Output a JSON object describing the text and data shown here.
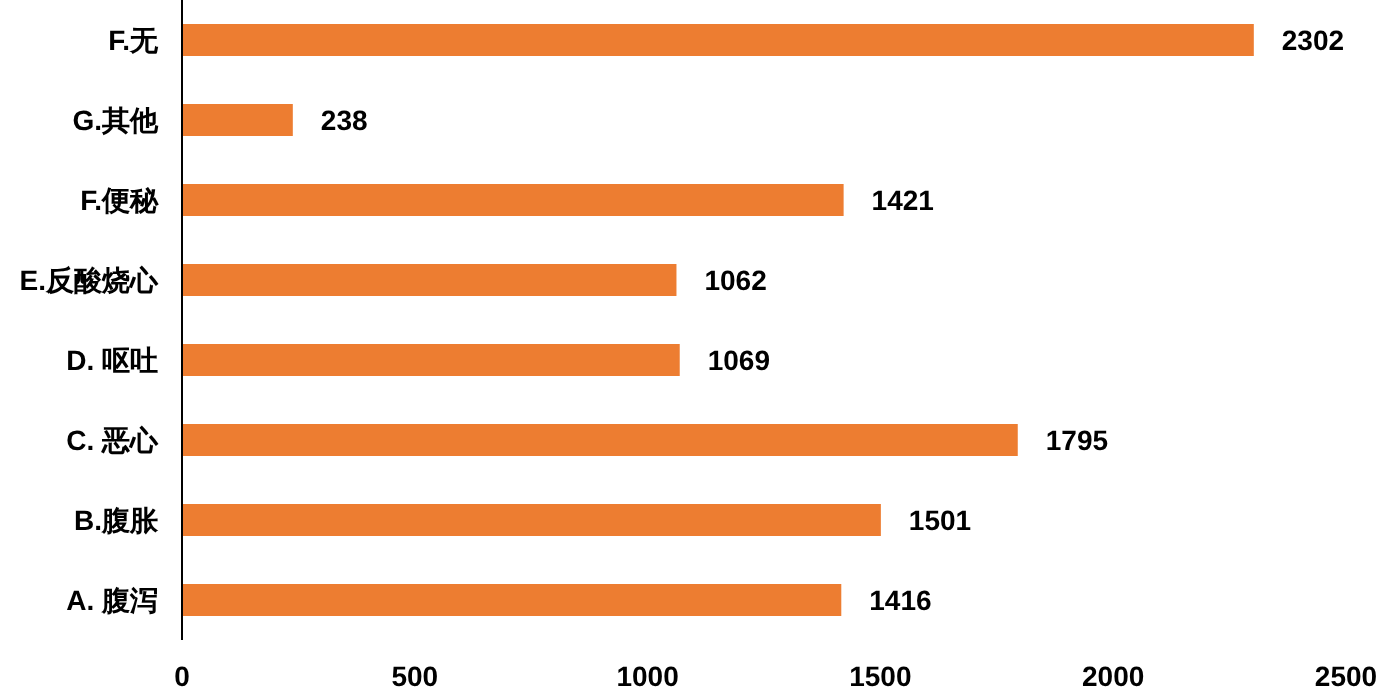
{
  "chart_data": {
    "type": "bar",
    "orientation": "horizontal",
    "categories": [
      "F.无",
      "G.其他",
      "F.便秘",
      "E.反酸烧心",
      "D. 呕吐",
      "C. 恶心",
      "B.腹胀",
      "A. 腹泻"
    ],
    "values": [
      2302,
      238,
      1421,
      1062,
      1069,
      1795,
      1501,
      1416
    ],
    "color": "#ed7d31",
    "xlim": [
      0,
      2500
    ],
    "xticks": [
      0,
      500,
      1000,
      1500,
      2000,
      2500
    ],
    "data_labels": true,
    "grid": false
  }
}
